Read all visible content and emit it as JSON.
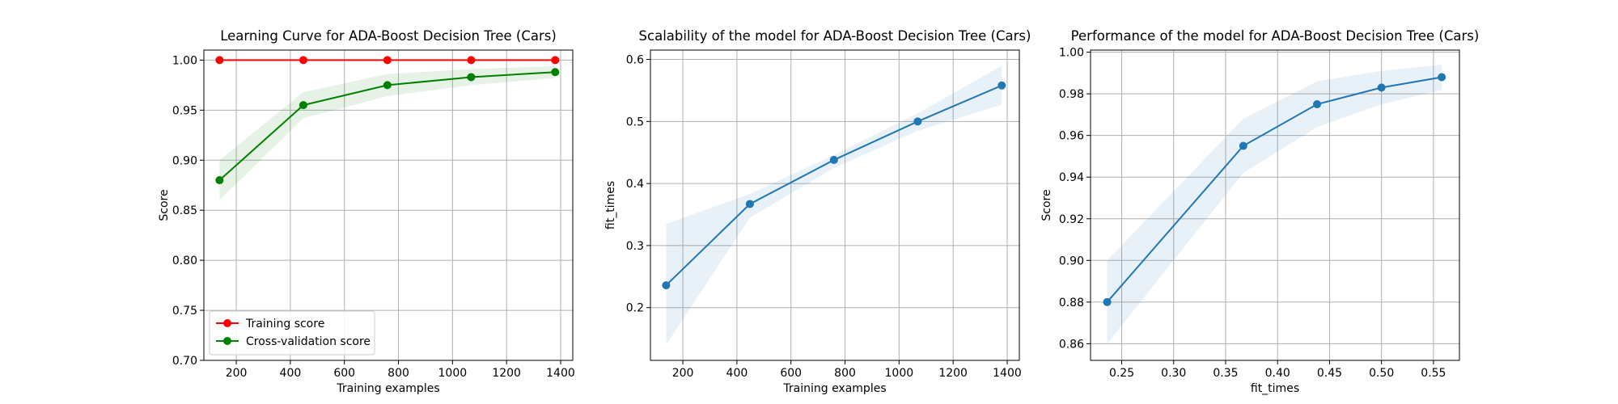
{
  "colors": {
    "training": "#ff0000",
    "cv": "#008000",
    "cv_band": "#008000",
    "training_band": "#ff0000",
    "blue": "#1f77b4",
    "grid": "#b0b0b0"
  },
  "chart_data": [
    {
      "type": "line",
      "title": "Learning Curve for ADA-Boost Decision Tree (Cars)",
      "xlabel": "Training examples",
      "ylabel": "Score",
      "xlim": [
        80,
        1445
      ],
      "ylim": [
        0.7,
        1.01
      ],
      "xticks": [
        "200",
        "400",
        "600",
        "800",
        "1000",
        "1200",
        "1400"
      ],
      "xtick_values": [
        200,
        400,
        600,
        800,
        1000,
        1200,
        1400
      ],
      "yticks": [
        "0.70",
        "0.75",
        "0.80",
        "0.85",
        "0.90",
        "0.95",
        "1.00"
      ],
      "ytick_values": [
        0.7,
        0.75,
        0.8,
        0.85,
        0.9,
        0.95,
        1.0
      ],
      "grid": true,
      "legend_position": "lower-left",
      "x": [
        138,
        448,
        759,
        1069,
        1380
      ],
      "series": [
        {
          "name": "Training score",
          "color_key": "training",
          "values": [
            1.0,
            1.0,
            1.0,
            1.0,
            1.0
          ],
          "band_low": [
            1.0,
            1.0,
            1.0,
            1.0,
            1.0
          ],
          "band_high": [
            1.0,
            1.0,
            1.0,
            1.0,
            1.0
          ]
        },
        {
          "name": "Cross-validation score",
          "color_key": "cv",
          "values": [
            0.88,
            0.955,
            0.975,
            0.983,
            0.988
          ],
          "band_low": [
            0.86,
            0.942,
            0.964,
            0.975,
            0.982
          ],
          "band_high": [
            0.9,
            0.968,
            0.986,
            0.991,
            0.994
          ]
        }
      ]
    },
    {
      "type": "line",
      "title": "Scalability of the model for ADA-Boost Decision Tree (Cars)",
      "xlabel": "Training examples",
      "ylabel": "fit_times",
      "xlim": [
        80,
        1445
      ],
      "ylim": [
        0.115,
        0.615
      ],
      "xticks": [
        "200",
        "400",
        "600",
        "800",
        "1000",
        "1200",
        "1400"
      ],
      "xtick_values": [
        200,
        400,
        600,
        800,
        1000,
        1200,
        1400
      ],
      "yticks": [
        "0.2",
        "0.3",
        "0.4",
        "0.5",
        "0.6"
      ],
      "ytick_values": [
        0.2,
        0.3,
        0.4,
        0.5,
        0.6
      ],
      "grid": true,
      "x": [
        138,
        448,
        759,
        1069,
        1380
      ],
      "series": [
        {
          "color_key": "blue",
          "values": [
            0.236,
            0.367,
            0.438,
            0.5,
            0.558
          ],
          "band_low": [
            0.14,
            0.345,
            0.425,
            0.485,
            0.527
          ],
          "band_high": [
            0.335,
            0.383,
            0.446,
            0.513,
            0.59
          ]
        }
      ]
    },
    {
      "type": "line",
      "title": "Performance of the model for ADA-Boost Decision Tree (Cars)",
      "xlabel": "fit_times",
      "ylabel": "Score",
      "xlim": [
        0.22,
        0.575
      ],
      "ylim": [
        0.852,
        1.001
      ],
      "xticks": [
        "0.25",
        "0.30",
        "0.35",
        "0.40",
        "0.45",
        "0.50",
        "0.55"
      ],
      "xtick_values": [
        0.25,
        0.3,
        0.35,
        0.4,
        0.45,
        0.5,
        0.55
      ],
      "yticks": [
        "0.86",
        "0.88",
        "0.90",
        "0.92",
        "0.94",
        "0.96",
        "0.98",
        "1.00"
      ],
      "ytick_values": [
        0.86,
        0.88,
        0.9,
        0.92,
        0.94,
        0.96,
        0.98,
        1.0
      ],
      "grid": true,
      "x": [
        0.236,
        0.367,
        0.438,
        0.5,
        0.558
      ],
      "series": [
        {
          "color_key": "blue",
          "values": [
            0.88,
            0.955,
            0.975,
            0.983,
            0.988
          ],
          "band_low": [
            0.86,
            0.942,
            0.964,
            0.975,
            0.982
          ],
          "band_high": [
            0.9,
            0.968,
            0.986,
            0.991,
            0.994
          ]
        }
      ]
    }
  ]
}
